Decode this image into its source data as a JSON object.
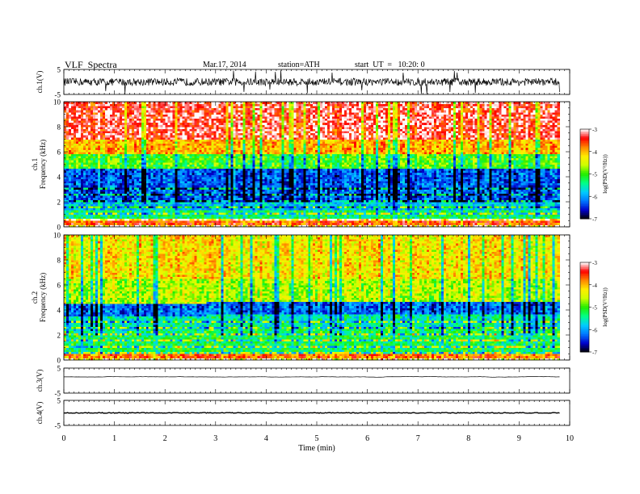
{
  "header": {
    "title": "VLF  Spectra",
    "date": "Mar.17, 2014",
    "station": "station=ATH",
    "start": "start  UT  =   10:20: 0"
  },
  "colorbar": {
    "label": "log(PSD(V²/Hz))",
    "ticks": [
      "-3",
      "-4",
      "-5",
      "-6",
      "-7"
    ],
    "range": [
      -7,
      -3
    ],
    "colors": [
      "#000000",
      "#0000cc",
      "#0077ff",
      "#00ccff",
      "#00ff88",
      "#22ee00",
      "#ccff00",
      "#ffee00",
      "#ff8800",
      "#ff0000",
      "#ffffff"
    ]
  },
  "chart_data": [
    {
      "type": "line",
      "name": "ch1",
      "ylabel": "ch.1(V)",
      "ylim": [
        -5,
        5
      ],
      "yticks": [
        "5",
        "-5"
      ],
      "xlim": [
        0,
        10
      ],
      "x_extent": [
        0,
        9.8
      ],
      "baseline": 0,
      "amplitude_typical": 1.5,
      "spikes": [
        -5,
        5
      ]
    },
    {
      "type": "heatmap",
      "name": "ch1-spectrogram",
      "ylabel_lines": [
        "ch.1",
        "Frequency  (kHz)"
      ],
      "ylim": [
        0,
        10
      ],
      "yticks": [
        "0",
        "2",
        "4",
        "6",
        "8",
        "10"
      ],
      "x_extent": [
        0,
        9.8
      ],
      "bands": [
        {
          "f": [
            0,
            0.6
          ],
          "level": -3.6
        },
        {
          "f": [
            0.6,
            1.4
          ],
          "level": -5.3
        },
        {
          "f": [
            1.4,
            2.0
          ],
          "level": -5.8
        },
        {
          "f": [
            2.0,
            4.6
          ],
          "level": -6.3
        },
        {
          "f": [
            4.6,
            5.8
          ],
          "level": -5.0
        },
        {
          "f": [
            5.8,
            7.0
          ],
          "level": -4.0
        },
        {
          "f": [
            7.0,
            10.0
          ],
          "level": -3.3
        }
      ],
      "band_shift": {
        "t": 2.8,
        "f_above": 2.4
      }
    },
    {
      "type": "heatmap",
      "name": "ch2-spectrogram",
      "ylabel_lines": [
        "ch.2",
        "Frequency  (kHz)"
      ],
      "ylim": [
        0,
        10
      ],
      "yticks": [
        "0",
        "2",
        "4",
        "6",
        "8",
        "10"
      ],
      "x_extent": [
        0,
        9.8
      ],
      "bands": [
        {
          "f": [
            0,
            0.5
          ],
          "level": -3.7
        },
        {
          "f": [
            0.5,
            2.5
          ],
          "level": -5.2
        },
        {
          "f": [
            2.5,
            3.6
          ],
          "level": -5.5
        },
        {
          "f": [
            3.6,
            4.6
          ],
          "level": -6.2
        },
        {
          "f": [
            4.6,
            6.5
          ],
          "level": -4.6
        },
        {
          "f": [
            6.5,
            10.0
          ],
          "level": -4.2
        }
      ],
      "band_shift": {
        "t": 2.8,
        "f_above": 2.6
      }
    },
    {
      "type": "line",
      "name": "ch3",
      "ylabel": "ch.3(V)",
      "ylim": [
        -5,
        5
      ],
      "yticks": [
        "5",
        "-5"
      ],
      "x_extent": [
        0,
        9.8
      ],
      "baseline": 1.5,
      "amplitude_typical": 0.3
    },
    {
      "type": "line",
      "name": "ch4",
      "ylabel": "ch.4(V)",
      "ylim": [
        -5,
        5
      ],
      "yticks": [
        "5",
        "-5"
      ],
      "x_extent": [
        0,
        9.8
      ],
      "baseline": 0,
      "amplitude_typical": 0.15
    }
  ],
  "xaxis": {
    "label": "Time  (min)",
    "ticks": [
      "0",
      "1",
      "2",
      "3",
      "4",
      "5",
      "6",
      "7",
      "8",
      "9",
      "10"
    ],
    "range": [
      0,
      10
    ]
  }
}
